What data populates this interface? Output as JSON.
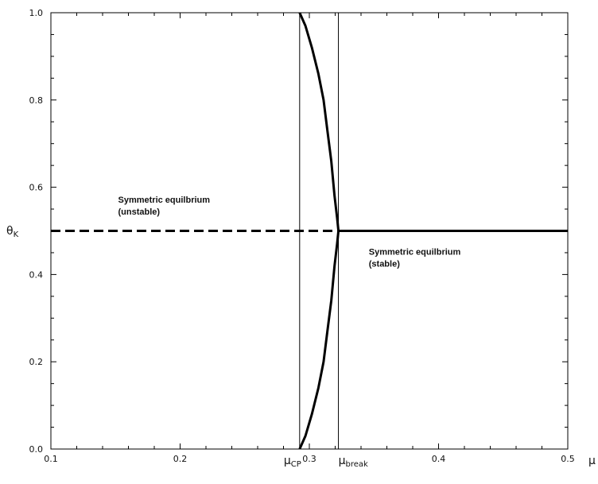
{
  "chart_data": {
    "type": "line",
    "title": "",
    "xlabel": "μ",
    "ylabel": "θ",
    "ylabel_subscript": "K",
    "xlim": [
      0.1,
      0.5
    ],
    "ylim": [
      0.0,
      1.0
    ],
    "x_ticks": [
      0.1,
      0.2,
      0.3,
      0.4,
      0.5
    ],
    "x_tick_labels": [
      "0.1",
      "0.2",
      "0.3",
      "0.4",
      "0.5"
    ],
    "y_ticks": [
      0.0,
      0.2,
      0.4,
      0.6,
      0.8,
      1.0
    ],
    "y_tick_labels": [
      "0.0",
      "0.2",
      "0.4",
      "0.6",
      "0.8",
      "1.0"
    ],
    "grid": false,
    "frame": true,
    "vertical_markers": [
      {
        "x": 0.2925,
        "label": "μ",
        "subscript": "CP"
      },
      {
        "x": 0.3225,
        "label": "μ",
        "subscript": "break"
      }
    ],
    "series": [
      {
        "style": "dashed",
        "points": [
          [
            0.1,
            0.5
          ],
          [
            0.3225,
            0.5
          ]
        ]
      },
      {
        "style": "solid",
        "points": [
          [
            0.3225,
            0.5
          ],
          [
            0.5,
            0.5
          ]
        ]
      },
      {
        "style": "solid",
        "points": [
          [
            0.2925,
            1.0
          ],
          [
            0.297,
            0.97
          ],
          [
            0.302,
            0.92
          ],
          [
            0.307,
            0.86
          ],
          [
            0.311,
            0.8
          ],
          [
            0.314,
            0.73
          ],
          [
            0.317,
            0.66
          ],
          [
            0.3195,
            0.58
          ],
          [
            0.3215,
            0.53
          ],
          [
            0.3225,
            0.5
          ],
          [
            0.3215,
            0.47
          ],
          [
            0.3195,
            0.42
          ],
          [
            0.317,
            0.34
          ],
          [
            0.314,
            0.27
          ],
          [
            0.311,
            0.2
          ],
          [
            0.307,
            0.14
          ],
          [
            0.302,
            0.08
          ],
          [
            0.297,
            0.03
          ],
          [
            0.2925,
            0.0
          ]
        ]
      }
    ],
    "annotations": [
      {
        "text": [
          "Symmetric equilbrium",
          "(unstable)"
        ],
        "x": 0.152,
        "y": 0.565
      },
      {
        "text": [
          "Symmetric equilbrium",
          "(stable)"
        ],
        "x": 0.346,
        "y": 0.445
      }
    ]
  }
}
